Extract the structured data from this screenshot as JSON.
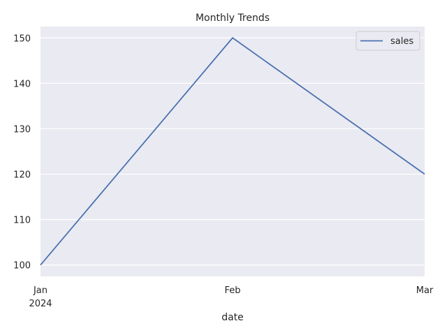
{
  "chart_data": {
    "type": "line",
    "title": "Monthly Trends",
    "xlabel": "date",
    "ylabel": "",
    "x": [
      "2024-01",
      "2024-02",
      "2024-03"
    ],
    "x_tick_labels": [
      "Jan",
      "Feb",
      "Mar"
    ],
    "x_tick_year": "2024",
    "series": [
      {
        "name": "sales",
        "values": [
          100,
          150,
          120
        ]
      }
    ],
    "ylim": [
      97.5,
      152.5
    ],
    "y_ticks": [
      100,
      110,
      120,
      130,
      140,
      150
    ],
    "grid": true,
    "legend": "top-right",
    "colors": {
      "line": "#4c72b0",
      "plot_bg": "#eaeaf2",
      "grid": "#ffffff"
    }
  }
}
